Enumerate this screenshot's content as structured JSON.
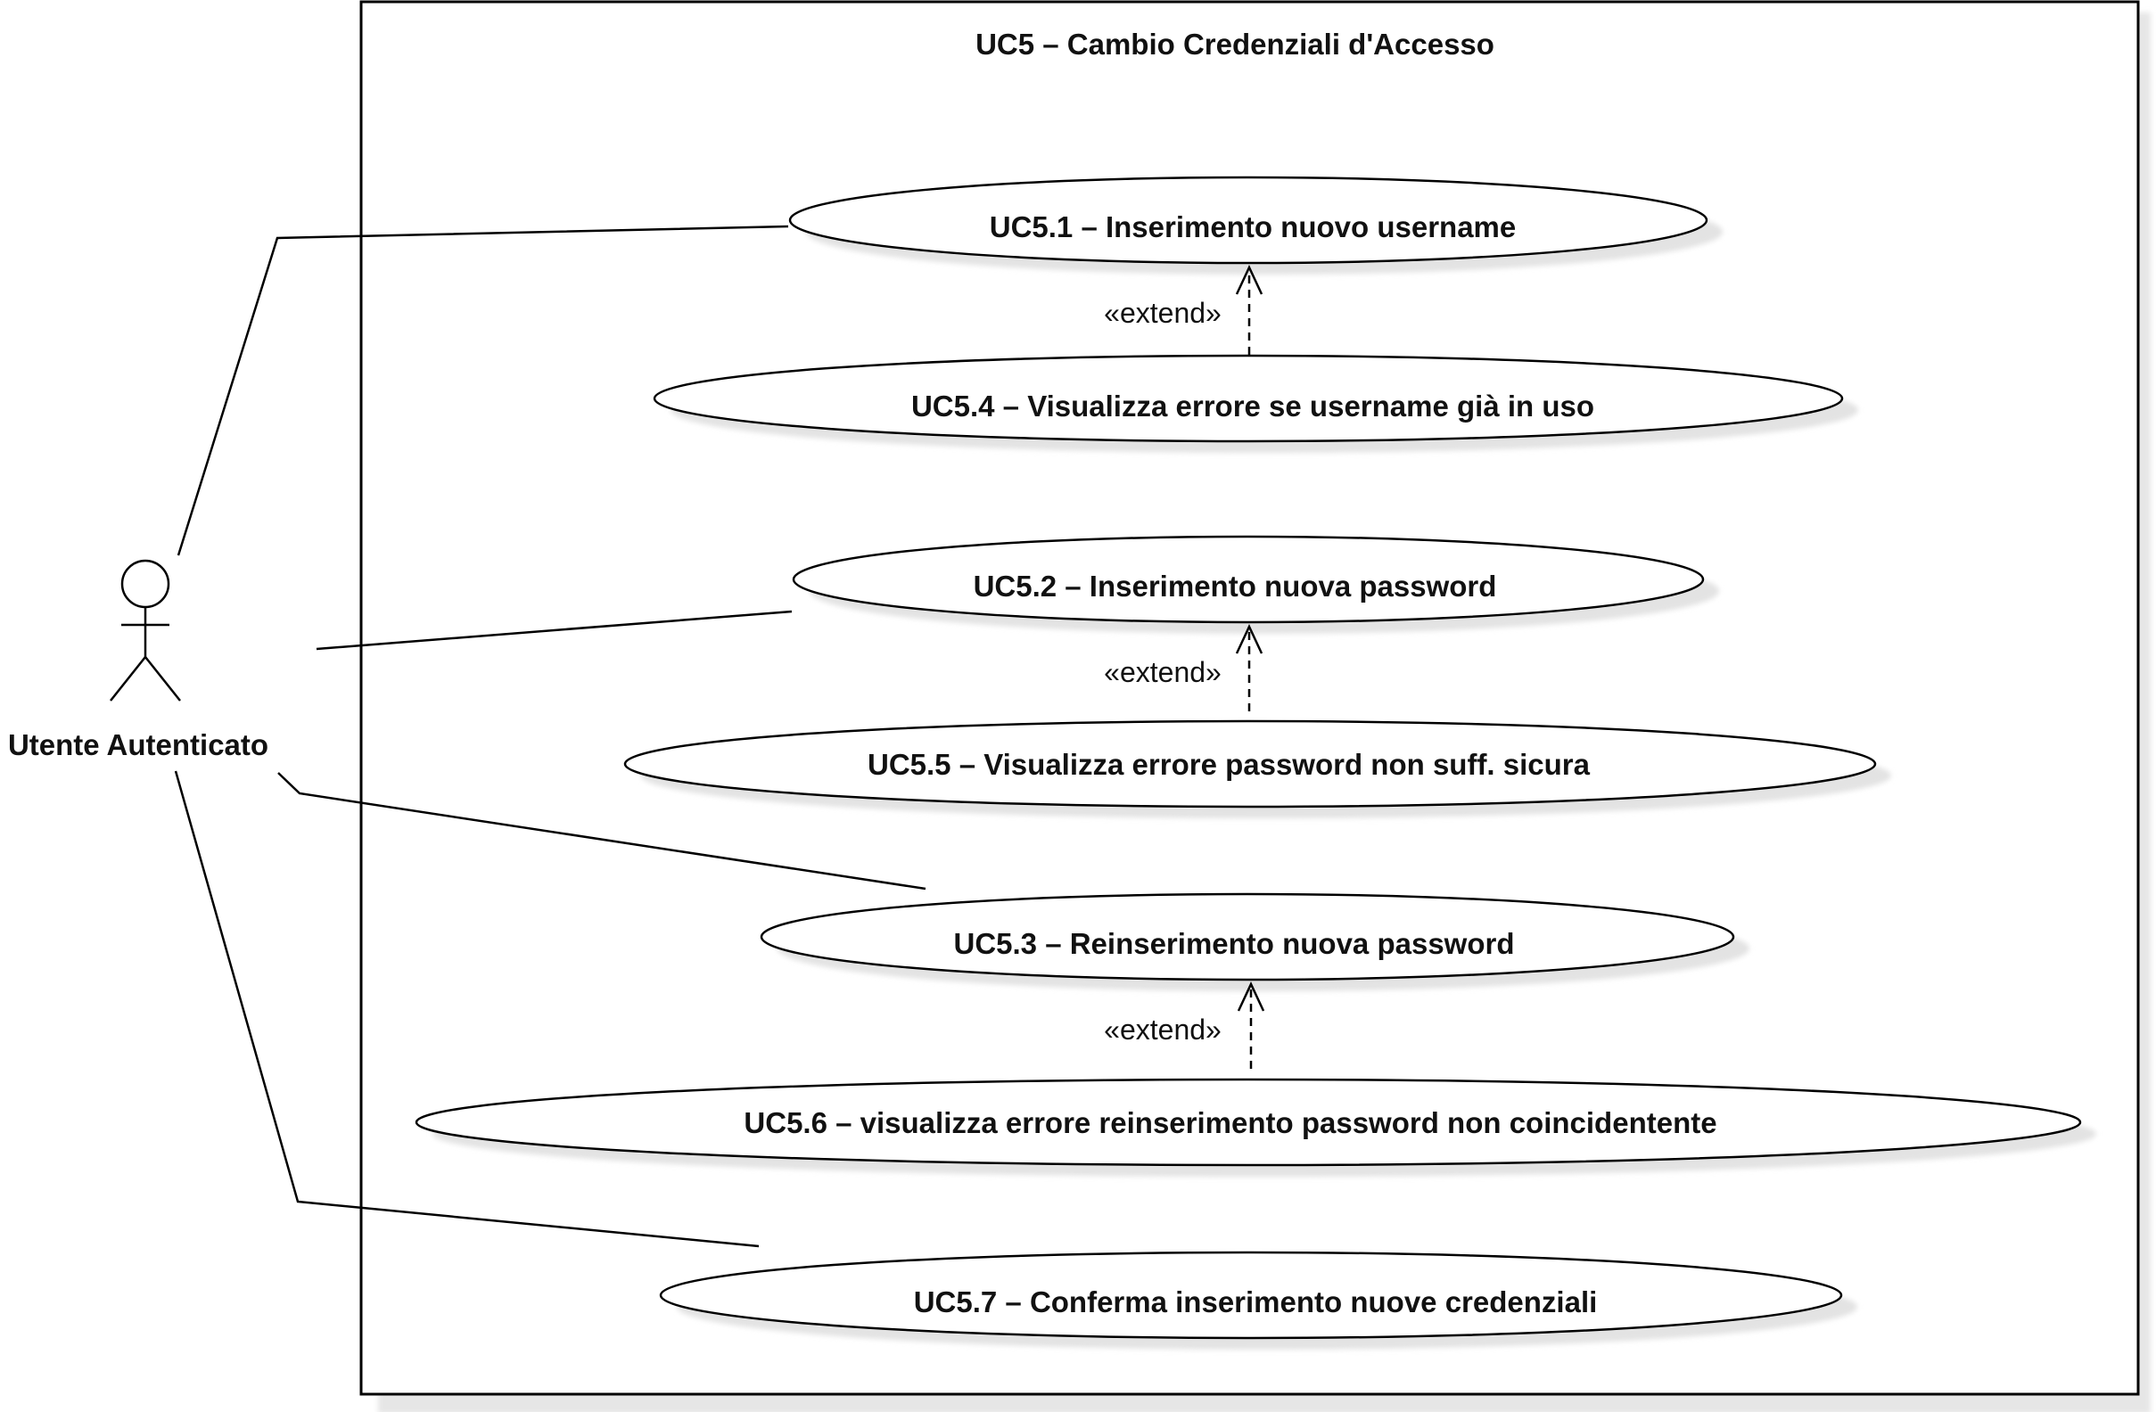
{
  "system": {
    "title": "UC5 – Cambio Credenziali d'Accesso"
  },
  "actor": {
    "name": "Utente Autenticato"
  },
  "use_cases": [
    {
      "id": "uc5-1",
      "label": "UC5.1 – Inserimento nuovo username"
    },
    {
      "id": "uc5-4",
      "label": "UC5.4 – Visualizza errore se username già in uso"
    },
    {
      "id": "uc5-2",
      "label": "UC5.2 – Inserimento nuova password"
    },
    {
      "id": "uc5-5",
      "label": "UC5.5 – Visualizza errore password non suff. sicura"
    },
    {
      "id": "uc5-3",
      "label": "UC5.3 – Reinserimento nuova password"
    },
    {
      "id": "uc5-6",
      "label": "UC5.6 – visualizza errore reinserimento password non coincidentente"
    },
    {
      "id": "uc5-7",
      "label": "UC5.7 – Conferma inserimento nuove credenziali"
    }
  ],
  "relations": [
    {
      "type": "extend",
      "label": "«extend»",
      "from": "uc5-4",
      "to": "uc5-1"
    },
    {
      "type": "extend",
      "label": "«extend»",
      "from": "uc5-5",
      "to": "uc5-2"
    },
    {
      "type": "extend",
      "label": "«extend»",
      "from": "uc5-6",
      "to": "uc5-3"
    }
  ]
}
